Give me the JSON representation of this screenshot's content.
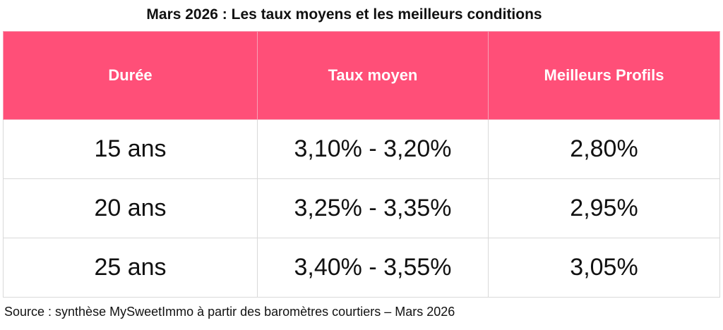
{
  "colors": {
    "header_background": "#ff4f78",
    "header_text": "#ffffff",
    "border": "#d9d9d9"
  },
  "chart_data": {
    "type": "table",
    "title": "Mars 2026 : Les taux moyens et les meilleurs conditions",
    "columns": [
      "Durée",
      "Taux moyen",
      "Meilleurs Profils"
    ],
    "rows": [
      [
        "15 ans",
        "3,10% - 3,20%",
        "2,80%"
      ],
      [
        "20 ans",
        "3,25% - 3,35%",
        "2,95%"
      ],
      [
        "25 ans",
        "3,40% - 3,55%",
        "3,05%"
      ]
    ],
    "source": "Source : synthèse MySweetImmo à partir des baromètres courtiers – Mars 2026"
  }
}
